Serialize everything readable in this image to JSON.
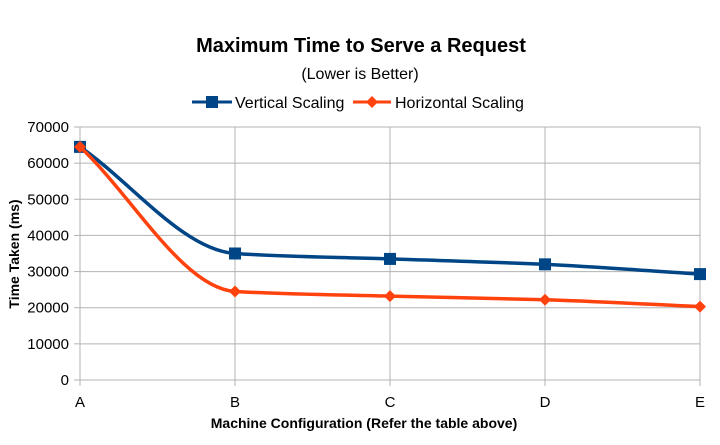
{
  "chart_data": {
    "type": "line",
    "title": "Maximum Time to Serve a Request",
    "subtitle": "(Lower is Better)",
    "xlabel": "Machine Configuration (Refer the table above)",
    "ylabel": "Time Taken (ms)",
    "categories": [
      "A",
      "B",
      "C",
      "D",
      "E"
    ],
    "ylim": [
      0,
      70000
    ],
    "yticks": [
      0,
      10000,
      20000,
      30000,
      40000,
      50000,
      60000,
      70000
    ],
    "grid": true,
    "legend": "top-center",
    "smooth": true,
    "series": [
      {
        "name": "Vertical Scaling",
        "color": "#004586",
        "marker": "square",
        "values": [
          64500,
          35000,
          33500,
          32000,
          29300
        ]
      },
      {
        "name": "Horizontal Scaling",
        "color": "#ff420e",
        "marker": "diamond",
        "values": [
          64500,
          24500,
          23200,
          22200,
          20300
        ]
      }
    ]
  }
}
